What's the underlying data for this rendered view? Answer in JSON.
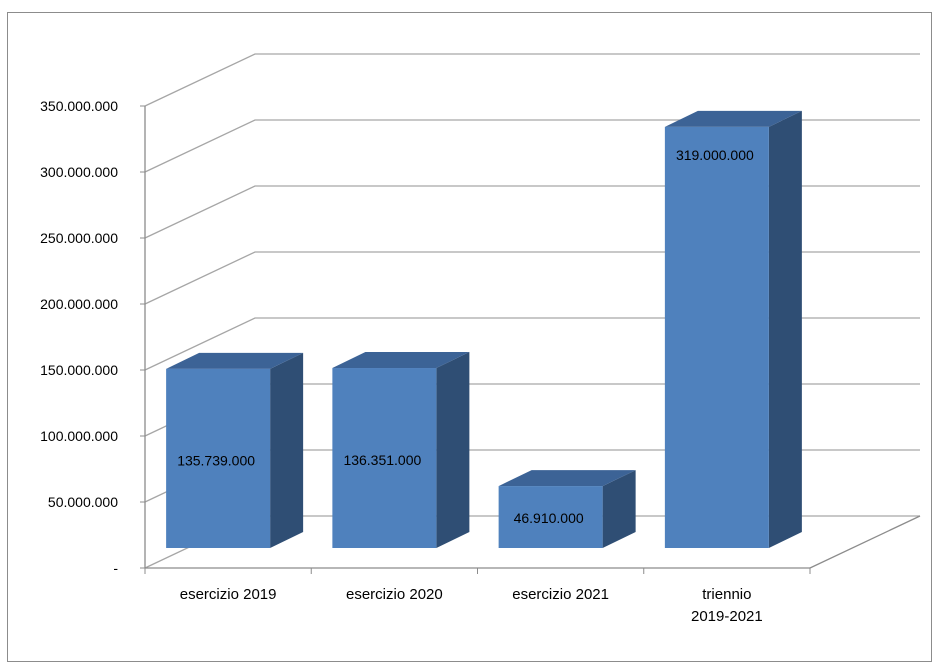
{
  "chart_data": {
    "type": "bar",
    "three_d": true,
    "categories": [
      [
        "esercizio 2019"
      ],
      [
        "esercizio 2020"
      ],
      [
        "esercizio 2021"
      ],
      [
        "triennio",
        "2019-2021"
      ]
    ],
    "values": [
      135739000,
      136351000,
      46910000,
      319000000
    ],
    "data_labels": [
      "135.739.000",
      "136.351.000",
      "46.910.000",
      "319.000.000"
    ],
    "ylim": [
      0,
      350000000
    ],
    "y_ticks": [
      {
        "value": 0,
        "label": "-"
      },
      {
        "value": 50000000,
        "label": "50.000.000"
      },
      {
        "value": 100000000,
        "label": "100.000.000"
      },
      {
        "value": 150000000,
        "label": "150.000.000"
      },
      {
        "value": 200000000,
        "label": "200.000.000"
      },
      {
        "value": 250000000,
        "label": "250.000.000"
      },
      {
        "value": 300000000,
        "label": "300.000.000"
      },
      {
        "value": 350000000,
        "label": "350.000.000"
      }
    ],
    "grid": true,
    "legend": "none",
    "title": "",
    "xlabel": "",
    "ylabel": "",
    "colors": {
      "bar_front": "#4f81bd",
      "bar_side": "#2f4e74",
      "bar_top": "#3c6396",
      "grid": "#a6a6a6",
      "axis": "#8c8c8c"
    }
  }
}
